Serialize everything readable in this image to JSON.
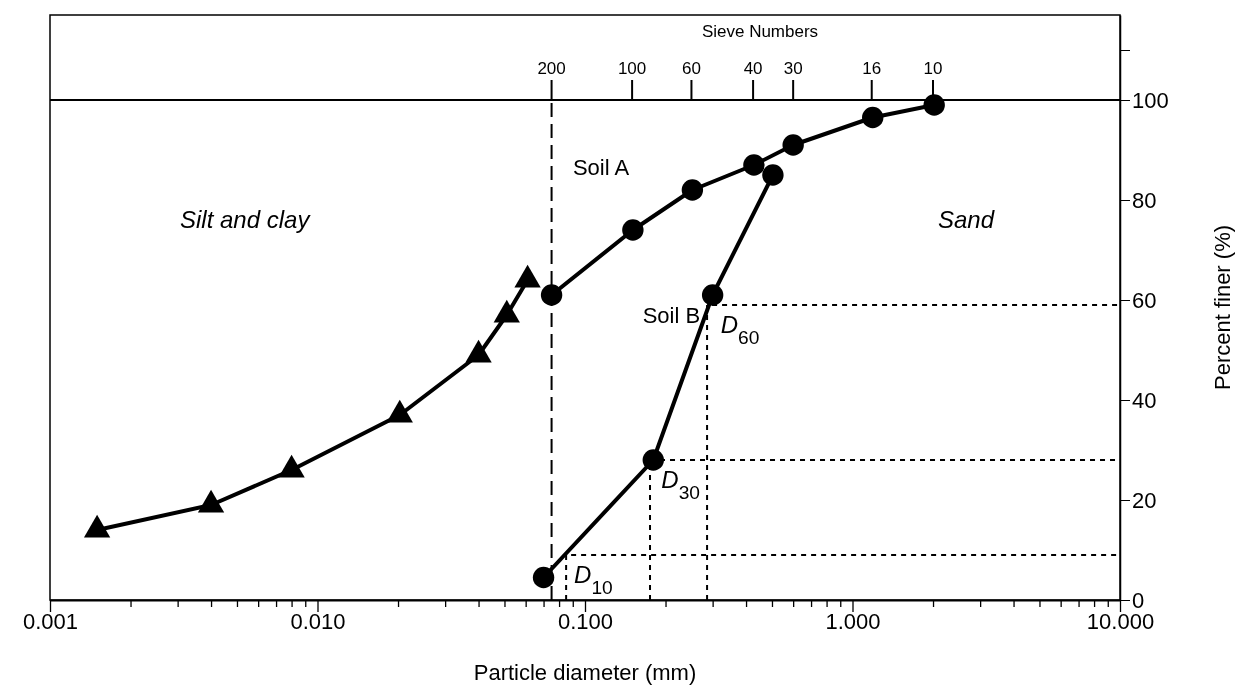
{
  "chart_data": {
    "type": "line",
    "xlabel": "Particle diameter (mm)",
    "ylabel": "Percent finer (%)",
    "log": "x",
    "xlim": [
      0.001,
      10
    ],
    "ylim": [
      0,
      117
    ],
    "xticks": [
      0.001,
      {
        "value": 0.002,
        "label": null
      },
      {
        "value": 0.003,
        "label": null
      },
      {
        "value": 0.004,
        "label": null
      },
      {
        "value": 0.005,
        "label": null
      },
      {
        "value": 0.006,
        "label": null
      },
      {
        "value": 0.007,
        "label": null
      },
      {
        "value": 0.008,
        "label": null
      },
      {
        "value": 0.009,
        "label": null
      },
      {
        "value": 0.01,
        "label": "0.010"
      },
      {
        "value": 0.02,
        "label": null
      },
      {
        "value": 0.03,
        "label": null
      },
      {
        "value": 0.04,
        "label": null
      },
      {
        "value": 0.05,
        "label": null
      },
      {
        "value": 0.06,
        "label": null
      },
      {
        "value": 0.07,
        "label": null
      },
      {
        "value": 0.08,
        "label": null
      },
      {
        "value": 0.09,
        "label": null
      },
      {
        "value": 0.1,
        "label": "0.100"
      },
      {
        "value": 0.2,
        "label": null
      },
      {
        "value": 0.3,
        "label": null
      },
      {
        "value": 0.4,
        "label": null
      },
      {
        "value": 0.5,
        "label": null
      },
      {
        "value": 0.6,
        "label": null
      },
      {
        "value": 0.7,
        "label": null
      },
      {
        "value": 0.8,
        "label": null
      },
      {
        "value": 0.9,
        "label": null
      },
      {
        "value": 1,
        "label": "1.000"
      },
      {
        "value": 2,
        "label": null
      },
      {
        "value": 3,
        "label": null
      },
      {
        "value": 4,
        "label": null
      },
      {
        "value": 5,
        "label": null
      },
      {
        "value": 6,
        "label": null
      },
      {
        "value": 7,
        "label": null
      },
      {
        "value": 8,
        "label": null
      },
      {
        "value": 9,
        "label": null
      },
      {
        "value": 10,
        "label": "10.000"
      }
    ],
    "yticks": [
      0,
      20,
      40,
      60,
      80,
      100,
      {
        "value": 110,
        "label": null
      }
    ],
    "ref_lines": [
      {
        "axis": "y",
        "value": 100,
        "color": "#000000",
        "line_style": "solid"
      }
    ],
    "series": [
      {
        "marker": "triangle",
        "line_style": "solid",
        "color": "#000000",
        "x": [
          0.0015,
          0.004,
          0.008,
          0.0203,
          0.04,
          0.051,
          0.061
        ],
        "values": [
          14,
          19,
          26,
          37,
          49,
          57,
          64
        ]
      },
      {
        "name": "Soil A",
        "marker": "circle",
        "line_style": "solid",
        "color": "#000000",
        "x": [
          0.075,
          0.151,
          0.252,
          0.428,
          0.6,
          1.19,
          2.02
        ],
        "values": [
          61,
          74,
          82,
          87,
          91,
          96.5,
          99
        ]
      },
      {
        "name": "Soil B",
        "marker": "circle",
        "line_style": "solid",
        "color": "#000000",
        "x": [
          0.07,
          0.18,
          0.3,
          0.504
        ],
        "values": [
          4.5,
          28,
          61,
          85
        ]
      },
      {
        "marker": "none",
        "line_style": "dashed",
        "color": "#000000",
        "x": [
          0.075,
          0.075
        ],
        "values": [
          0,
          100
        ]
      },
      {
        "marker": "none",
        "line_style": "dotted",
        "color": "#000000",
        "x": [
          0.085,
          0.085,
          10
        ],
        "values": [
          0,
          9,
          9
        ]
      },
      {
        "marker": "none",
        "line_style": "dotted",
        "color": "#000000",
        "x": [
          0.175,
          0.175,
          10
        ],
        "values": [
          0,
          28,
          28
        ]
      },
      {
        "marker": "none",
        "line_style": "dotted",
        "color": "#000000",
        "x": [
          0.286,
          0.286,
          10
        ],
        "values": [
          0,
          59,
          59
        ]
      }
    ],
    "annotations": [
      "Silt and clay",
      "Sand",
      "Sieve Numbers",
      {
        "text": "200",
        "x": 0.075,
        "y": 100
      },
      {
        "text": "100",
        "x": 0.15,
        "y": 100
      },
      {
        "text": "60",
        "x": 0.25,
        "y": 100
      },
      {
        "text": "40",
        "x": 0.425,
        "y": 100
      },
      {
        "text": "30",
        "x": 0.6,
        "y": 100
      },
      {
        "text": "16",
        "x": 1.18,
        "y": 100
      },
      {
        "text": "10",
        "x": 2.0,
        "y": 100
      },
      {
        "text": "D$_{10}$",
        "x": 0.085,
        "y": 9
      },
      {
        "text": "D$_{30}$",
        "x": 0.18,
        "y": 28
      },
      {
        "text": "D$_{60}$",
        "x": 0.3,
        "y": 59
      }
    ]
  }
}
